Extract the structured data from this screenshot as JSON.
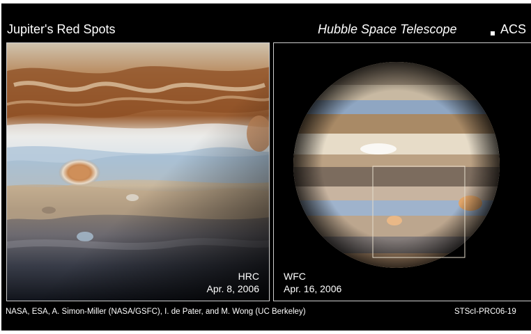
{
  "header": {
    "title": "Jupiter's Red Spots",
    "telescope": "Hubble Space Telescope",
    "separator_icon": "square-bullet-icon",
    "instrument": "ACS"
  },
  "panels": {
    "left": {
      "camera": "HRC",
      "date": "Apr. 8, 2006"
    },
    "right": {
      "camera": "WFC",
      "date": "Apr. 16, 2006"
    }
  },
  "footer": {
    "credit": "NASA, ESA, A. Simon-Miller (NASA/GSFC), I. de Pater, and M. Wong (UC Berkeley)",
    "release": "STScI-PRC06-19"
  },
  "colors": {
    "background": "#000000",
    "text": "#ffffff",
    "frame": "#cfcfcf",
    "band_brown": "#a86a3c",
    "band_cream": "#e8d9c2",
    "band_blue": "#9fb3c8",
    "red_spot": "#d8965e"
  }
}
